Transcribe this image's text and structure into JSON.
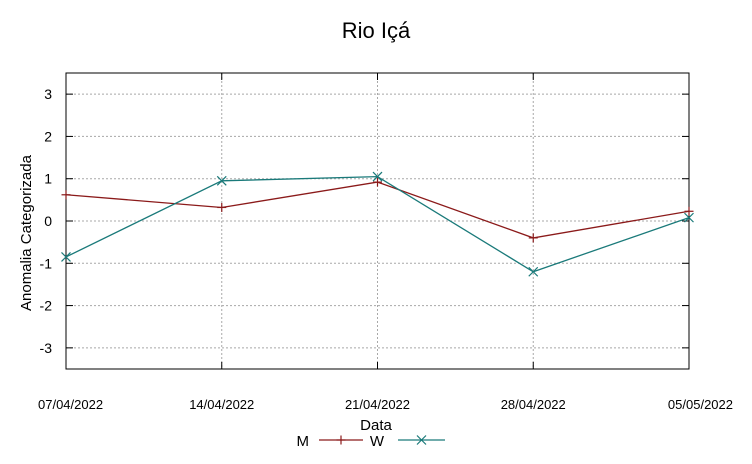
{
  "chart_data": {
    "type": "line",
    "title": "Rio Içá",
    "xlabel": "Data",
    "ylabel": "Anomalia Categorizada",
    "categories": [
      "07/04/2022",
      "14/04/2022",
      "21/04/2022",
      "28/04/2022",
      "05/05/2022"
    ],
    "ylim": [
      -3.5,
      3.5
    ],
    "yticks": [
      -3,
      -2,
      -1,
      0,
      1,
      2,
      3
    ],
    "ytick_labels": [
      "-3",
      "-2",
      "-1",
      "0",
      "1",
      "2",
      "3"
    ],
    "grid": true,
    "series": [
      {
        "name": "M",
        "marker": "plus",
        "color": "#8b1a1a",
        "values": [
          0.62,
          0.32,
          0.92,
          -0.4,
          0.23
        ]
      },
      {
        "name": "W",
        "marker": "x",
        "color": "#1a7a7a",
        "values": [
          -0.85,
          0.95,
          1.05,
          -1.2,
          0.08
        ]
      }
    ],
    "legend": "bottom-center"
  }
}
